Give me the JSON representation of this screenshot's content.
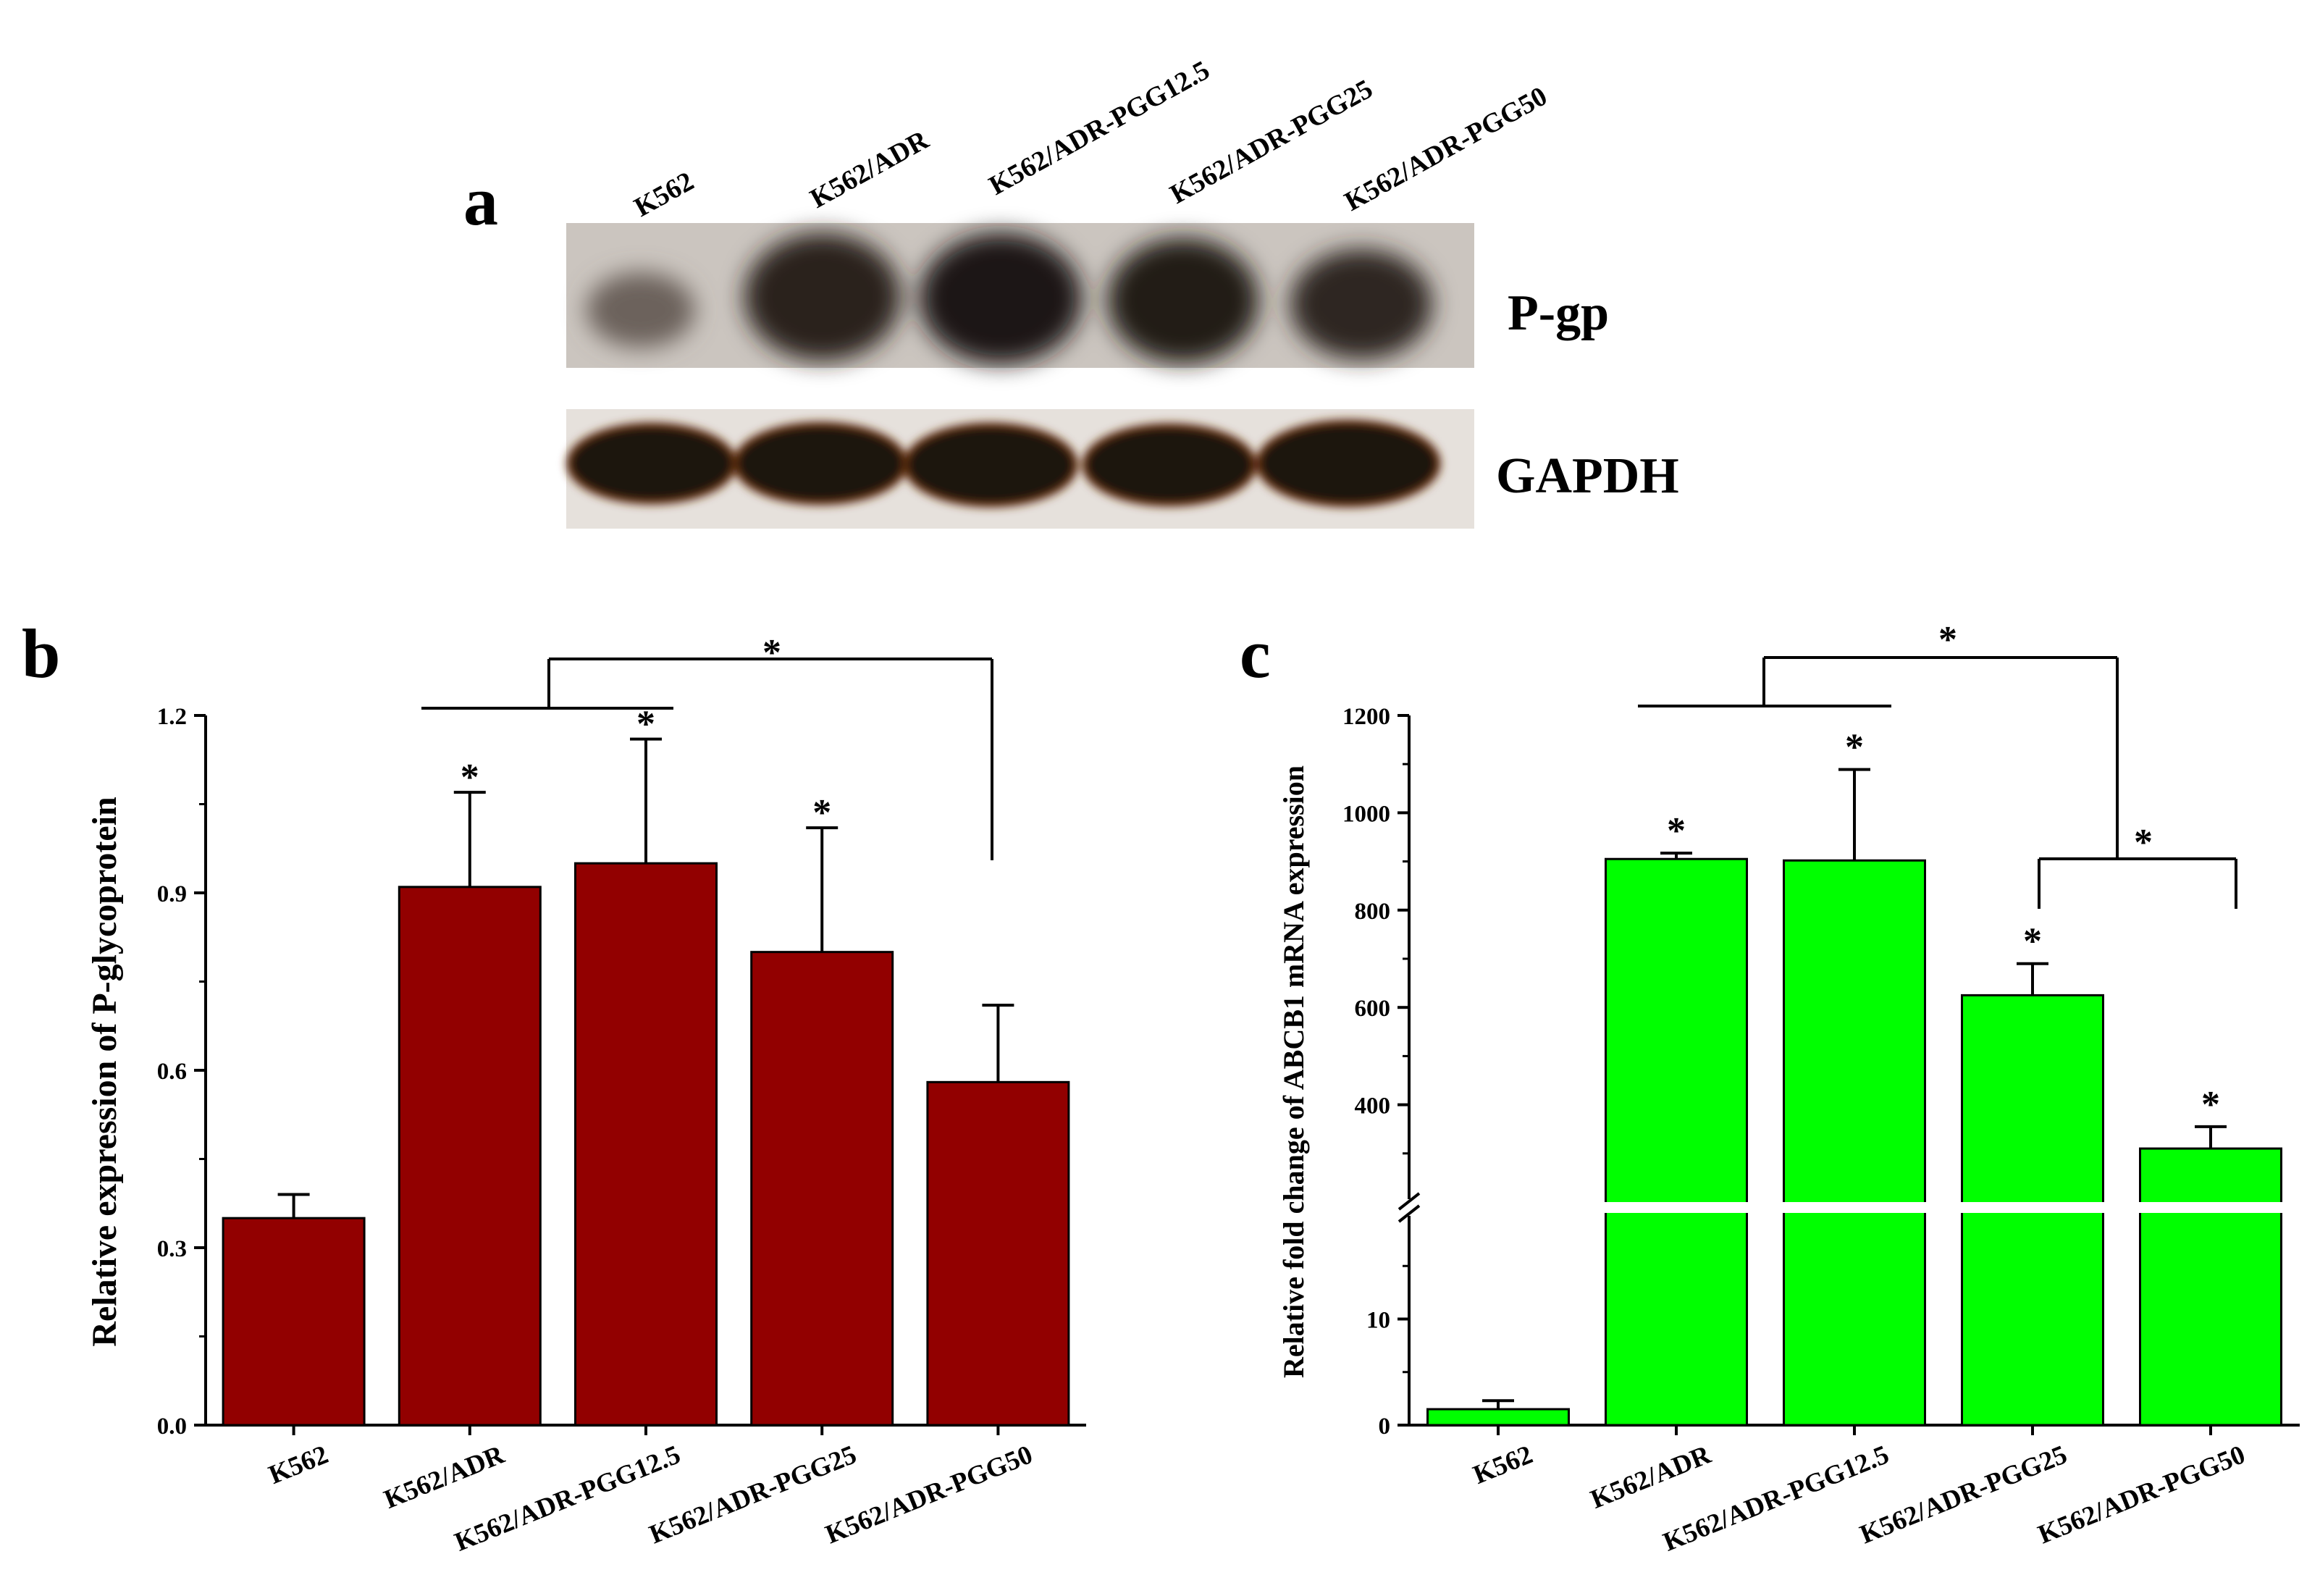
{
  "panels": {
    "a": "a",
    "b": "b",
    "c": "c"
  },
  "blot": {
    "lanes": [
      "K562",
      "K562/ADR",
      "K562/ADR-PGG12.5",
      "K562/ADR-PGG25",
      "K562/ADR-PGG50"
    ],
    "bands": [
      "P-gp",
      "GAPDH"
    ],
    "colors": {
      "background": "#c9c3bd",
      "band": "#1c1613",
      "gapdh_edge": "#7a3a1a"
    }
  },
  "chart_data": [
    {
      "type": "bar",
      "panel": "b",
      "categories": [
        "K562",
        "K562/ADR",
        "K562/ADR-PGG12.5",
        "K562/ADR-PGG25",
        "K562/ADR-PGG50"
      ],
      "series": [
        {
          "values": [
            0.35,
            0.91,
            0.95,
            0.8,
            0.58
          ],
          "errors": [
            0.04,
            0.16,
            0.21,
            0.21,
            0.13
          ]
        }
      ],
      "ylabel": "Relative expression of P-glycoprotein",
      "ylim": [
        0,
        1.2
      ],
      "yticks": [
        "0.0",
        "0.3",
        "0.6",
        "0.9",
        "1.2"
      ],
      "bar_color": "#920000",
      "significance": {
        "bar_stars": [
          "",
          "*",
          "*",
          "*",
          ""
        ],
        "bracket_label": "*"
      }
    },
    {
      "type": "bar",
      "panel": "c",
      "categories": [
        "K562",
        "K562/ADR",
        "K562/ADR-PGG12.5",
        "K562/ADR-PGG25",
        "K562/ADR-PGG50"
      ],
      "series": [
        {
          "values": [
            1.5,
            905,
            902,
            625,
            310
          ],
          "errors": [
            0.8,
            12,
            187,
            65,
            45
          ]
        }
      ],
      "ylabel": "Relative fold change of ABCB1 mRNA expression",
      "y_scale": "broken",
      "ylim_lower": [
        0,
        20
      ],
      "ylim_upper": [
        200,
        1200
      ],
      "yticks_lower": [
        "0",
        "10"
      ],
      "yticks_upper": [
        "400",
        "600",
        "800",
        "1000",
        "1200"
      ],
      "bar_color": "#00ff00",
      "significance": {
        "bar_stars": [
          "",
          "*",
          "*",
          "*",
          "*"
        ],
        "bracket_label_top": "*",
        "bracket_label_right": "*"
      }
    }
  ]
}
